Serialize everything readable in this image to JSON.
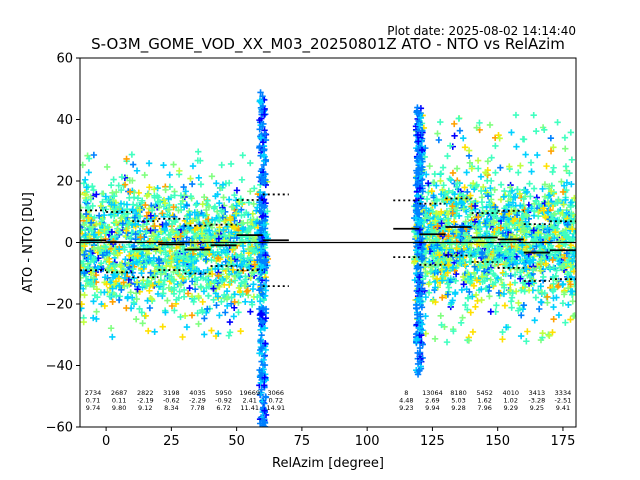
{
  "plot_date": "Plot date: 2025-08-02 14:14:40",
  "chart_data": {
    "type": "scatter",
    "title": "S-O3M_GOME_VOD_XX_M03_20250801Z ATO - NTO vs RelAzim",
    "xlabel": "RelAzim [degree]",
    "ylabel": "ATO - NTO [DU]",
    "xlim": [
      -10,
      180
    ],
    "ylim": [
      -60,
      60
    ],
    "xticks": [
      0,
      25,
      50,
      75,
      100,
      125,
      150,
      175
    ],
    "yticks": [
      -60,
      -40,
      -20,
      0,
      20,
      40,
      60
    ],
    "grid": false,
    "colormap": [
      "#0000ff",
      "#0080ff",
      "#00d0ff",
      "#40ffc0",
      "#80ff80",
      "#c0ff40",
      "#ffe000",
      "#ffa000"
    ],
    "marker": "+",
    "zero_line": 0,
    "bins": [
      {
        "x": 0,
        "count": "2734",
        "mean": "0.71",
        "std": "9.74",
        "mean_v": 0.71,
        "std_v": 9.74
      },
      {
        "x": 10,
        "count": "2687",
        "mean": "0.11",
        "std": "9.80",
        "mean_v": 0.11,
        "std_v": 9.8
      },
      {
        "x": 20,
        "count": "2822",
        "mean": "-2.19",
        "std": "9.12",
        "mean_v": -2.19,
        "std_v": 9.12
      },
      {
        "x": 30,
        "count": "3198",
        "mean": "-0.62",
        "std": "8.34",
        "mean_v": -0.62,
        "std_v": 8.34
      },
      {
        "x": 40,
        "count": "4035",
        "mean": "-2.29",
        "std": "7.78",
        "mean_v": -2.29,
        "std_v": 7.78
      },
      {
        "x": 50,
        "count": "5950",
        "mean": "-0.92",
        "std": "6.72",
        "mean_v": -0.92,
        "std_v": 6.72
      },
      {
        "x": 60,
        "count": "19669",
        "mean": "2.41",
        "std": "11.41",
        "mean_v": 2.41,
        "std_v": 11.41
      },
      {
        "x": 70,
        "count": "3066",
        "mean": "0.72",
        "std": "14.91",
        "mean_v": 0.72,
        "std_v": 14.91
      },
      {
        "x": 120,
        "count": "8",
        "mean": "4.48",
        "std": "9.23",
        "mean_v": 4.48,
        "std_v": 9.23
      },
      {
        "x": 130,
        "count": "13064",
        "mean": "2.69",
        "std": "9.94",
        "mean_v": 2.69,
        "std_v": 9.94
      },
      {
        "x": 140,
        "count": "8180",
        "mean": "5.03",
        "std": "9.28",
        "mean_v": 5.03,
        "std_v": 9.28
      },
      {
        "x": 150,
        "count": "5452",
        "mean": "1.62",
        "std": "7.96",
        "mean_v": 1.62,
        "std_v": 7.96
      },
      {
        "x": 160,
        "count": "4010",
        "mean": "1.02",
        "std": "9.29",
        "mean_v": 1.02,
        "std_v": 9.29
      },
      {
        "x": 170,
        "count": "3413",
        "mean": "-3.28",
        "std": "9.25",
        "mean_v": -3.28,
        "std_v": 9.25
      },
      {
        "x": 180,
        "count": "3334",
        "mean": "-2.51",
        "std": "9.41",
        "mean_v": -2.51,
        "std_v": 9.41
      }
    ],
    "clusters": [
      {
        "x0": -10,
        "x1": 62,
        "core_lo": -25,
        "core_hi": 22,
        "halo_lo": -32,
        "halo_hi": 30,
        "spike_x": 60,
        "spike_lo": -60,
        "spike_hi": 49
      },
      {
        "x0": 118,
        "x1": 180,
        "core_lo": -24,
        "core_hi": 26,
        "halo_lo": -33,
        "halo_hi": 42,
        "spike_x": 120,
        "spike_lo": -43,
        "spike_hi": 44
      }
    ]
  }
}
